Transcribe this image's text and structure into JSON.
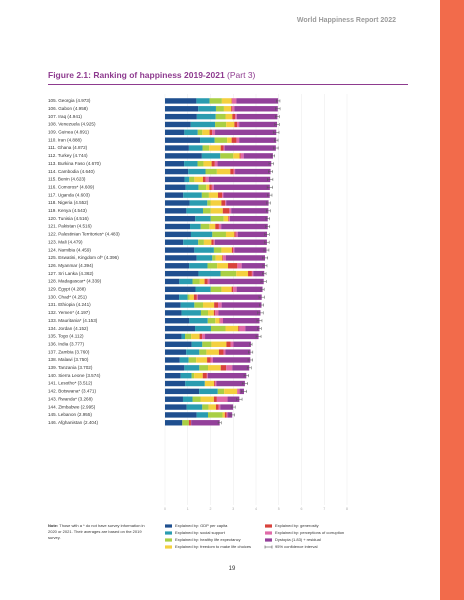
{
  "header": "World Happiness Report 2022",
  "figure_title": "Figure 2.1: Ranking of happiness 2019-2021",
  "figure_part": "(Part 3)",
  "note_label": "Note:",
  "note": "Those with a * do not have survey information in 2020 or 2021. Their averages are based on the 2019 survey.",
  "page_number": "19",
  "chart_data": {
    "type": "bar",
    "orientation": "horizontal",
    "stacked": true,
    "categories": [
      "105. Georgia (4.973)",
      "106. Gabon (4.958)",
      "107. Iraq (4.941)",
      "108. Venezuela (4.925)",
      "109. Guinea (4.891)",
      "110. Iran (4.888)",
      "111. Ghana (4.872)",
      "112. Turkey (4.744)",
      "113. Burkina Faso (4.670)",
      "114. Cambodia (4.640)",
      "115. Benin (4.623)",
      "116. Comoros* (4.609)",
      "117. Uganda (4.603)",
      "118. Nigeria (4.552)",
      "119. Kenya (4.543)",
      "120. Tunisia (4.516)",
      "121. Pakistan (4.516)",
      "122. Palestinian Territories* (4.483)",
      "123. Mali (4.479)",
      "124. Namibia (4.459)",
      "125. Eswatini, Kingdom of* (4.396)",
      "126. Myanmar (4.394)",
      "127. Sri Lanka (4.362)",
      "128. Madagascar* (4.339)",
      "129. Egypt (4.288)",
      "130. Chad* (4.251)",
      "131. Ethiopia (4.241)",
      "132. Yemen* (4.197)",
      "133. Mauritania* (4.153)",
      "134. Jordan (4.152)",
      "135. Togo (4.112)",
      "136. India (3.777)",
      "137. Zambia (3.760)",
      "138. Malawi (3.750)",
      "139. Tanzania (3.702)",
      "140. Sierra Leone (3.574)",
      "141. Lesotho* (3.512)",
      "142. Botswana* (3.471)",
      "143. Rwanda* (3.268)",
      "144. Zimbabwe (2.995)",
      "145. Lebanon (2.955)",
      "146. Afghanistan (2.404)"
    ],
    "series": [
      {
        "name": "Explained by: GDP per capita",
        "color": "#1f4f8f",
        "values": [
          1.38,
          1.46,
          1.4,
          1.13,
          0.85,
          1.54,
          1.05,
          1.62,
          0.84,
          1.02,
          0.86,
          0.91,
          0.8,
          1.08,
          0.94,
          1.33,
          1.1,
          1.14,
          0.8,
          1.29,
          1.39,
          1.06,
          1.47,
          0.63,
          1.34,
          0.62,
          0.69,
          0.73,
          1.07,
          1.32,
          0.73,
          1.17,
          0.93,
          0.65,
          0.85,
          0.69,
          0.89,
          1.5,
          0.79,
          0.95,
          1.39,
          0.76
        ]
      },
      {
        "name": "Explained by: social support",
        "color": "#2a9cb0",
        "values": [
          0.58,
          0.78,
          0.83,
          1.07,
          0.59,
          0.64,
          0.6,
          0.81,
          0.59,
          0.76,
          0.21,
          0.56,
          0.82,
          0.78,
          0.73,
          0.68,
          0.47,
          0.94,
          0.66,
          0.86,
          0.69,
          0.81,
          0.97,
          0.58,
          0.67,
          0.37,
          0.6,
          0.85,
          0.81,
          0.7,
          0.15,
          0.47,
          0.58,
          0.39,
          0.66,
          0.48,
          0.86,
          0.82,
          0.42,
          0.69,
          0.5,
          0
        ]
      },
      {
        "name": "Explained by: healthy life expectancy",
        "color": "#a9cf45",
        "values": [
          0.54,
          0.35,
          0.43,
          0.49,
          0.2,
          0.55,
          0.29,
          0.57,
          0.26,
          0.5,
          0.22,
          0.34,
          0.31,
          0.14,
          0.34,
          0.57,
          0.38,
          0.6,
          0.25,
          0.33,
          0.15,
          0.42,
          0.69,
          0.32,
          0.47,
          0.09,
          0.38,
          0.31,
          0.33,
          0.64,
          0.27,
          0.4,
          0.31,
          0.33,
          0.38,
          0.11,
          0,
          0.28,
          0.35,
          0.27,
          0.64,
          0.29
        ]
      },
      {
        "name": "Explained by: freedom to make life choices",
        "color": "#f4d03f",
        "values": [
          0.43,
          0.32,
          0.3,
          0.36,
          0.32,
          0.2,
          0.51,
          0.28,
          0.36,
          0.59,
          0.38,
          0.14,
          0.4,
          0.48,
          0.53,
          0.2,
          0.26,
          0.37,
          0.33,
          0.46,
          0.29,
          0.48,
          0.52,
          0.21,
          0.45,
          0.19,
          0.49,
          0.26,
          0.19,
          0.56,
          0.37,
          0.66,
          0.55,
          0.48,
          0.56,
          0.38,
          0.41,
          0.57,
          0.59,
          0.33,
          0.1,
          0
        ]
      },
      {
        "name": "Explained by: generosity",
        "color": "#d8423c",
        "values": [
          0.03,
          0.05,
          0.12,
          0.12,
          0.11,
          0.21,
          0.12,
          0.05,
          0.14,
          0.15,
          0.12,
          0.11,
          0.18,
          0.16,
          0.29,
          0.03,
          0.16,
          0.06,
          0.1,
          0.05,
          0.04,
          0.41,
          0.17,
          0.14,
          0.07,
          0.13,
          0.17,
          0.06,
          0.03,
          0.05,
          0.11,
          0.18,
          0.2,
          0.15,
          0.24,
          0.18,
          0.04,
          0.01,
          0.13,
          0.11,
          0.08,
          0.09
        ]
      },
      {
        "name": "Explained by: perceptions of corruption",
        "color": "#e06aa8",
        "values": [
          0.18,
          0.09,
          0.08,
          0.09,
          0.13,
          0.12,
          0.05,
          0.13,
          0.12,
          0.06,
          0.13,
          0.09,
          0.06,
          0.05,
          0.08,
          0.04,
          0.1,
          0.09,
          0.05,
          0.06,
          0.12,
          0.19,
          0.06,
          0.08,
          0.15,
          0.05,
          0.16,
          0.14,
          0.12,
          0.26,
          0.13,
          0.13,
          0.09,
          0.11,
          0.27,
          0.04,
          0.06,
          0.1,
          0.47,
          0.08,
          0.04,
          0.01
        ]
      },
      {
        "name": "Dystopia (1.83) + residual",
        "color": "#93409a",
        "values": [
          1.833,
          1.908,
          1.781,
          1.665,
          2.691,
          1.628,
          2.252,
          1.284,
          2.36,
          1.56,
          2.703,
          2.459,
          2.033,
          1.862,
          1.633,
          1.666,
          2.046,
          1.283,
          2.289,
          1.409,
          1.716,
          1.024,
          0.482,
          2.379,
          1.138,
          2.801,
          1.751,
          1.847,
          1.603,
          0.622,
          2.352,
          0.767,
          1.1,
          1.64,
          0.742,
          1.694,
          1.252,
          0.191,
          0.518,
          0.565,
          0.205,
          1.254
        ]
      }
    ],
    "error": [
      0.08,
      0.1,
      0.09,
      0.1,
      0.12,
      0.08,
      0.1,
      0.08,
      0.1,
      0.09,
      0.12,
      0.12,
      0.1,
      0.08,
      0.09,
      0.08,
      0.09,
      0.1,
      0.1,
      0.11,
      0.12,
      0.09,
      0.08,
      0.12,
      0.07,
      0.12,
      0.09,
      0.12,
      0.11,
      0.08,
      0.11,
      0.05,
      0.1,
      0.1,
      0.09,
      0.1,
      0.12,
      0.12,
      0.12,
      0.09,
      0.1,
      0.07
    ],
    "error_label": "95% confidence interval",
    "error_color": "#555555",
    "xlim": [
      0,
      8
    ],
    "xticks": [
      0,
      1,
      2,
      3,
      4,
      5,
      6,
      7,
      8
    ],
    "grid": true
  }
}
